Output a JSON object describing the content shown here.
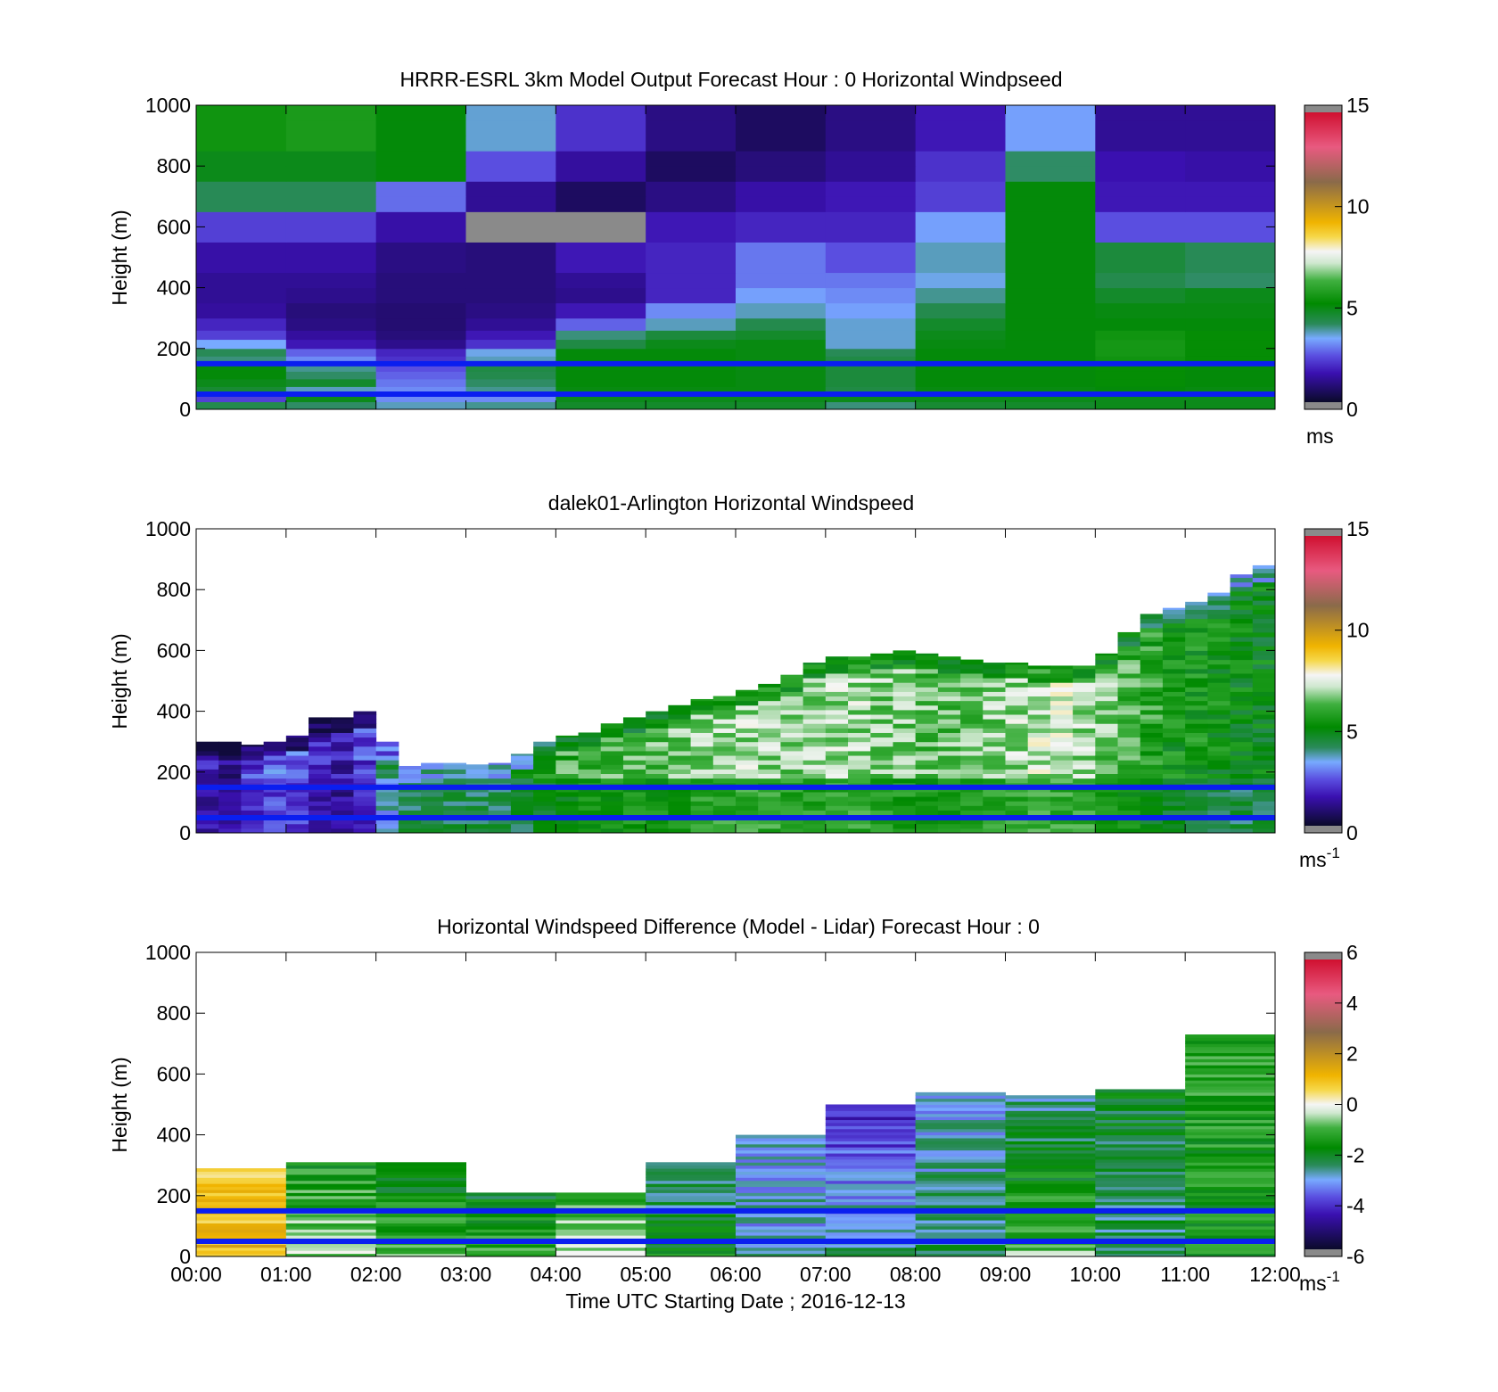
{
  "chart_data": [
    {
      "type": "heatmap",
      "title": "HRRR-ESRL 3km Model Output   Forecast Hour : 0 Horizontal Windpseed",
      "ylabel": "Height (m)",
      "xlabel": "",
      "xlim": [
        0,
        12
      ],
      "ylim": [
        0,
        1000
      ],
      "y_ticks": [
        "0",
        "200",
        "400",
        "600",
        "800",
        "1000"
      ],
      "x_tick_positions": [
        0,
        1,
        2,
        3,
        4,
        5,
        6,
        7,
        8,
        9,
        10,
        11,
        12
      ],
      "x_tick_labels_shown": false,
      "colorbar": {
        "min": 0,
        "max": 15,
        "ticks": [
          "0",
          "5",
          "10",
          "15"
        ],
        "unit": "ms",
        "unit_sup": ""
      },
      "reference_lines_m": [
        50,
        150
      ],
      "heights_m": [
        25,
        50,
        75,
        100,
        125,
        150,
        175,
        200,
        230,
        260,
        300,
        350,
        400,
        450,
        500,
        550,
        600,
        650,
        700,
        750,
        800,
        850,
        900,
        950,
        1000
      ],
      "values": [
        [
          4.2,
          4.0,
          3.6,
          3.8,
          4.6,
          4.6,
          4.6,
          3.9,
          4.5,
          4.6,
          4.8,
          4.8
        ],
        [
          2.2,
          4.8,
          3.0,
          3.0,
          4.8,
          4.8,
          4.8,
          4.8,
          4.8,
          4.8,
          4.8,
          4.8
        ],
        [
          4.5,
          3.6,
          3.0,
          3.8,
          4.9,
          4.9,
          4.9,
          4.3,
          4.9,
          4.9,
          5.0,
          4.9
        ],
        [
          4.8,
          4.6,
          2.8,
          4.0,
          5.0,
          5.0,
          4.9,
          4.4,
          5.0,
          5.0,
          5.2,
          5.0
        ],
        [
          5.0,
          4.0,
          2.6,
          4.2,
          5.0,
          5.0,
          4.9,
          4.4,
          5.0,
          5.0,
          5.2,
          5.0
        ],
        [
          5.0,
          3.8,
          2.4,
          4.3,
          5.0,
          5.0,
          4.9,
          4.4,
          5.0,
          5.0,
          5.2,
          5.0
        ],
        [
          3.9,
          3.0,
          2.0,
          3.6,
          5.0,
          5.0,
          4.9,
          4.3,
          5.0,
          5.0,
          5.4,
          5.2
        ],
        [
          4.1,
          2.6,
          1.8,
          3.4,
          5.0,
          5.0,
          4.9,
          4.1,
          5.0,
          5.0,
          5.5,
          5.2
        ],
        [
          3.3,
          1.6,
          1.1,
          2.0,
          4.3,
          4.8,
          4.9,
          3.5,
          4.9,
          5.0,
          5.5,
          5.2
        ],
        [
          2.2,
          1.3,
          0.9,
          1.6,
          3.9,
          4.4,
          4.6,
          3.5,
          4.8,
          5.0,
          5.4,
          5.2
        ],
        [
          1.8,
          1.0,
          0.8,
          1.2,
          2.6,
          3.6,
          4.2,
          3.5,
          4.6,
          5.0,
          5.0,
          5.0
        ],
        [
          1.3,
          0.9,
          0.8,
          1.0,
          1.6,
          3.0,
          3.6,
          3.2,
          4.2,
          5.0,
          4.9,
          4.9
        ],
        [
          1.2,
          1.1,
          0.9,
          0.9,
          1.1,
          1.8,
          3.2,
          3.0,
          3.8,
          5.0,
          4.6,
          4.8
        ],
        [
          1.2,
          1.2,
          0.9,
          0.9,
          1.2,
          1.8,
          2.8,
          2.8,
          3.4,
          5.0,
          4.2,
          4.0
        ],
        [
          1.4,
          1.4,
          1.0,
          0.9,
          1.6,
          1.8,
          2.8,
          2.4,
          3.6,
          5.0,
          4.4,
          4.1
        ],
        [
          1.4,
          1.4,
          1.0,
          0.9,
          1.6,
          1.8,
          2.8,
          2.4,
          3.6,
          5.0,
          4.4,
          4.1
        ],
        [
          2.2,
          2.2,
          1.4,
          null,
          null,
          1.6,
          1.8,
          1.8,
          3.2,
          5.0,
          2.4,
          2.4
        ],
        [
          2.2,
          2.2,
          1.4,
          null,
          null,
          1.6,
          1.8,
          1.8,
          3.2,
          5.0,
          2.4,
          2.4
        ],
        [
          4.1,
          4.1,
          2.7,
          1.2,
          0.6,
          1.0,
          1.4,
          1.6,
          2.2,
          5.0,
          1.6,
          1.6
        ],
        [
          4.1,
          4.1,
          2.7,
          1.2,
          0.6,
          1.0,
          1.4,
          1.6,
          2.2,
          5.0,
          1.6,
          1.6
        ],
        [
          4.8,
          4.8,
          5.0,
          2.4,
          1.3,
          0.6,
          0.9,
          1.2,
          2.0,
          4.0,
          1.5,
          1.4
        ],
        [
          4.8,
          4.8,
          5.0,
          2.4,
          1.3,
          0.6,
          0.9,
          1.2,
          2.0,
          4.0,
          1.5,
          1.4
        ],
        [
          5.4,
          5.6,
          5.0,
          3.5,
          2.0,
          1.0,
          0.6,
          1.0,
          1.6,
          3.2,
          1.2,
          1.2
        ],
        [
          5.4,
          5.6,
          5.0,
          3.5,
          2.0,
          1.0,
          0.6,
          1.0,
          1.6,
          3.2,
          1.2,
          1.2
        ],
        [
          5.4,
          5.6,
          5.0,
          3.5,
          2.0,
          1.0,
          0.6,
          1.0,
          1.6,
          3.2,
          1.2,
          1.2
        ]
      ]
    },
    {
      "type": "heatmap",
      "title": "dalek01-Arlington  Horizontal Windspeed",
      "ylabel": "Height (m)",
      "xlabel": "",
      "xlim": [
        0,
        12
      ],
      "ylim": [
        0,
        1000
      ],
      "y_ticks": [
        "0",
        "200",
        "400",
        "600",
        "800",
        "1000"
      ],
      "x_tick_positions": [
        0,
        1,
        2,
        3,
        4,
        5,
        6,
        7,
        8,
        9,
        10,
        11,
        12
      ],
      "x_tick_labels_shown": false,
      "colorbar": {
        "min": 0,
        "max": 15,
        "ticks": [
          "0",
          "5",
          "10",
          "15"
        ],
        "unit": "ms",
        "unit_sup": "-1"
      },
      "reference_lines_m": [
        50,
        150
      ],
      "x_resolution_h": 0.25,
      "columns_top_m": [
        300,
        300,
        290,
        300,
        320,
        380,
        380,
        400,
        300,
        220,
        230,
        230,
        225,
        230,
        260,
        300,
        320,
        330,
        360,
        380,
        400,
        420,
        440,
        450,
        470,
        490,
        520,
        560,
        580,
        580,
        590,
        600,
        590,
        580,
        570,
        560,
        560,
        550,
        550,
        550,
        590,
        660,
        720,
        740,
        760,
        790,
        850,
        880
      ],
      "columns_mean": [
        1.5,
        1.4,
        2.0,
        2.6,
        2.5,
        1.7,
        1.5,
        2.2,
        4.0,
        5.0,
        5.0,
        5.0,
        5.0,
        5.0,
        5.2,
        5.6,
        6.0,
        6.2,
        6.3,
        6.4,
        6.4,
        6.6,
        6.8,
        7.0,
        7.0,
        7.0,
        6.8,
        6.8,
        7.0,
        7.0,
        6.8,
        6.6,
        6.4,
        6.4,
        6.6,
        6.8,
        7.0,
        7.2,
        7.2,
        7.0,
        6.6,
        6.2,
        5.8,
        5.4,
        5.4,
        5.2,
        5.0,
        5.0
      ],
      "value_noise": 0.9
    },
    {
      "type": "heatmap",
      "title": "Horizontal Windspeed Difference (Model - Lidar) Forecast Hour : 0",
      "ylabel": "Height (m)",
      "xlabel": "Time UTC  Starting Date ; 2016-12-13",
      "xlim": [
        0,
        12
      ],
      "ylim": [
        0,
        1000
      ],
      "y_ticks": [
        "0",
        "200",
        "400",
        "600",
        "800",
        "1000"
      ],
      "x_tick_positions": [
        0,
        1,
        2,
        3,
        4,
        5,
        6,
        7,
        8,
        9,
        10,
        11,
        12
      ],
      "x_ticks": [
        "00:00",
        "01:00",
        "02:00",
        "03:00",
        "04:00",
        "05:00",
        "06:00",
        "07:00",
        "08:00",
        "09:00",
        "10:00",
        "11:00",
        "12:00"
      ],
      "x_tick_labels_shown": true,
      "colorbar": {
        "min": -6,
        "max": 6,
        "ticks": [
          "-6",
          "-4",
          "-2",
          "0",
          "2",
          "4",
          "6"
        ],
        "unit": "ms",
        "unit_sup": "-1"
      },
      "reference_lines_m": [
        50,
        150
      ],
      "columns_top_m": [
        290,
        310,
        310,
        210,
        210,
        310,
        400,
        500,
        540,
        530,
        550,
        730
      ],
      "columns_bottom_mean": [
        1.2,
        -0.5,
        -1.0,
        -1.2,
        -0.2,
        -1.8,
        -3.0,
        -2.5,
        -2.4,
        -0.8,
        -2.6,
        -1.6
      ],
      "columns_top_mean": [
        0.6,
        -1.6,
        -2.2,
        -2.2,
        -1.4,
        -3.0,
        -3.2,
        -4.4,
        -3.2,
        -2.8,
        -2.0,
        -1.4
      ]
    }
  ]
}
